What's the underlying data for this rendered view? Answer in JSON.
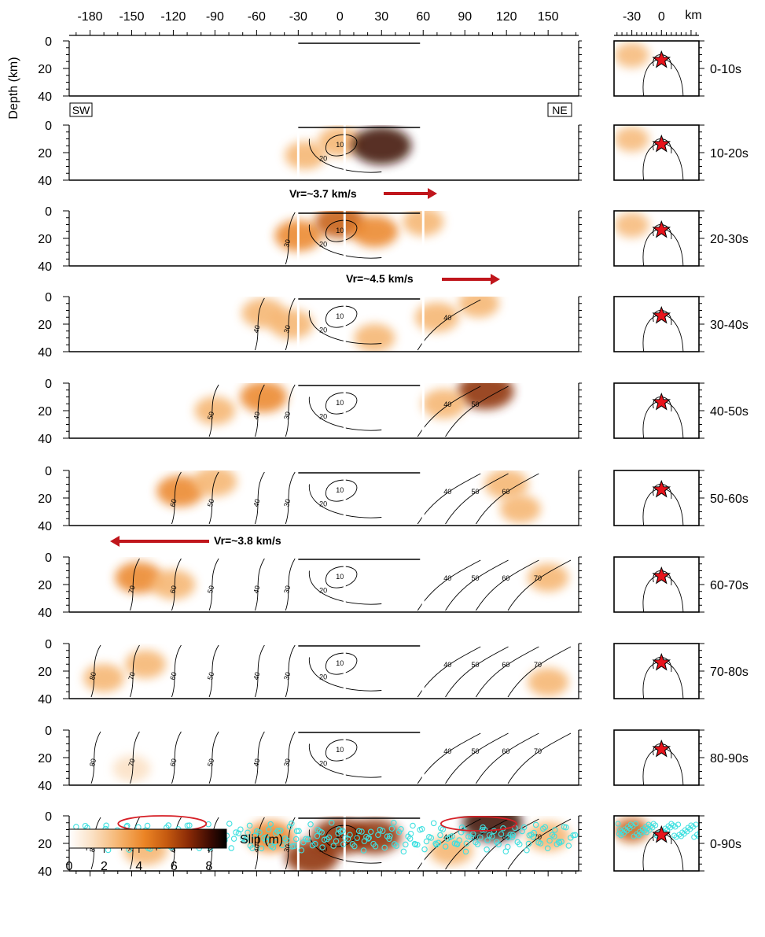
{
  "chart_data": {
    "type": "heatmap",
    "top_axis": {
      "ticks": [
        -180,
        -150,
        -120,
        -90,
        -60,
        -30,
        0,
        30,
        60,
        90,
        120,
        150
      ]
    },
    "depth_axis": {
      "label": "Depth (km)",
      "ticks": [
        0,
        20,
        40
      ],
      "ylim": [
        0,
        40
      ]
    },
    "direction_labels": {
      "left": "SW",
      "right": "NE"
    },
    "side_axis": {
      "ticks": [
        -30,
        0
      ],
      "unit": "km"
    },
    "time_windows": [
      "0-10s",
      "10-20s",
      "20-30s",
      "30-40s",
      "40-50s",
      "50-60s",
      "60-70s",
      "70-80s",
      "80-90s",
      "0-90s"
    ],
    "rupture_velocities": [
      {
        "label": "Vr=~3.7 km/s",
        "direction": "right",
        "after_window": "10-20s"
      },
      {
        "label": "Vr=~4.5 km/s",
        "direction": "right",
        "after_window": "20-30s"
      },
      {
        "label": "Vr=~3.8 km/s",
        "direction": "left",
        "after_window": "50-60s"
      }
    ],
    "contour_labels_s": [
      10,
      20,
      30,
      40,
      50,
      60,
      70,
      80
    ],
    "colorbar": {
      "label": "Slip (m)",
      "ticks": [
        0,
        2,
        4,
        6,
        8
      ],
      "range": [
        0,
        9
      ],
      "colors": [
        "#ffffff",
        "#fbe0c3",
        "#f5b36d",
        "#eb8425",
        "#c55a10",
        "#8a2a06",
        "#3a0a02",
        "#000000"
      ]
    },
    "slip_patches": [
      {
        "window": "0-10s",
        "patches": []
      },
      {
        "window": "10-20s",
        "patches": [
          {
            "x": 0,
            "z": 12,
            "slip": 3
          },
          {
            "x": 30,
            "z": 15,
            "slip": 8
          },
          {
            "x": -25,
            "z": 22,
            "slip": 2
          }
        ]
      },
      {
        "window": "20-30s",
        "patches": [
          {
            "x": -30,
            "z": 18,
            "slip": 4
          },
          {
            "x": 0,
            "z": 8,
            "slip": 5
          },
          {
            "x": 25,
            "z": 15,
            "slip": 4
          },
          {
            "x": 60,
            "z": 8,
            "slip": 2
          }
        ]
      },
      {
        "window": "30-40s",
        "patches": [
          {
            "x": -55,
            "z": 12,
            "slip": 3
          },
          {
            "x": -35,
            "z": 20,
            "slip": 3
          },
          {
            "x": 25,
            "z": 30,
            "slip": 2
          },
          {
            "x": 70,
            "z": 15,
            "slip": 3
          },
          {
            "x": 100,
            "z": 5,
            "slip": 2
          }
        ]
      },
      {
        "window": "40-50s",
        "patches": [
          {
            "x": -90,
            "z": 20,
            "slip": 2
          },
          {
            "x": -55,
            "z": 10,
            "slip": 4
          },
          {
            "x": 105,
            "z": 6,
            "slip": 7
          },
          {
            "x": 75,
            "z": 15,
            "slip": 3
          }
        ]
      },
      {
        "window": "50-60s",
        "patches": [
          {
            "x": -115,
            "z": 15,
            "slip": 4
          },
          {
            "x": -90,
            "z": 8,
            "slip": 3
          },
          {
            "x": 120,
            "z": 10,
            "slip": 3
          },
          {
            "x": 130,
            "z": 28,
            "slip": 2
          }
        ]
      },
      {
        "window": "60-70s",
        "patches": [
          {
            "x": -145,
            "z": 15,
            "slip": 4
          },
          {
            "x": -120,
            "z": 20,
            "slip": 3
          },
          {
            "x": 150,
            "z": 15,
            "slip": 2
          }
        ]
      },
      {
        "window": "70-80s",
        "patches": [
          {
            "x": -170,
            "z": 25,
            "slip": 2
          },
          {
            "x": -140,
            "z": 15,
            "slip": 2
          },
          {
            "x": 150,
            "z": 28,
            "slip": 2
          }
        ]
      },
      {
        "window": "80-90s",
        "patches": [
          {
            "x": -150,
            "z": 28,
            "slip": 1
          }
        ]
      },
      {
        "window": "0-90s",
        "patches": [
          {
            "x": -140,
            "z": 25,
            "slip": 3
          },
          {
            "x": -50,
            "z": 15,
            "slip": 4
          },
          {
            "x": -20,
            "z": 30,
            "slip": 6
          },
          {
            "x": 0,
            "z": 15,
            "slip": 7
          },
          {
            "x": 25,
            "z": 15,
            "slip": 6
          },
          {
            "x": 110,
            "z": 5,
            "slip": 8
          },
          {
            "x": 80,
            "z": 25,
            "slip": 3
          },
          {
            "x": 150,
            "z": 15,
            "slip": 3
          }
        ]
      }
    ]
  }
}
